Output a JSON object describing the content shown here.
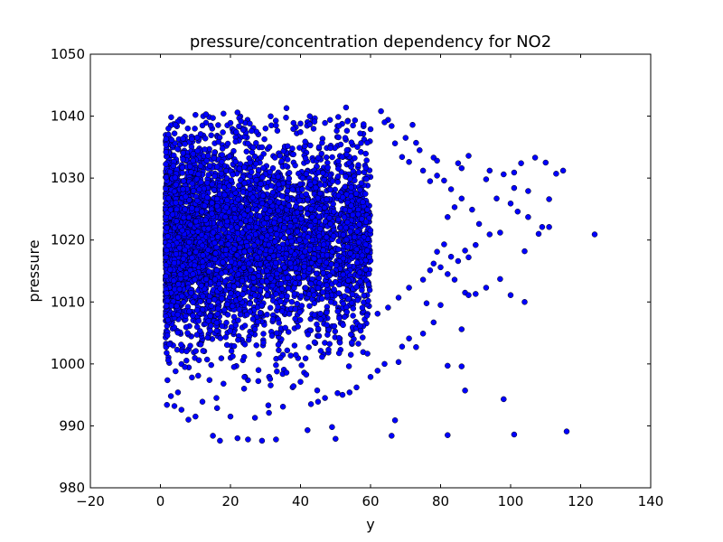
{
  "chart_data": {
    "type": "scatter",
    "title": "pressure/concentration dependency for NO2",
    "xlabel": "y",
    "ylabel": "pressure",
    "xlim": [
      -20,
      140
    ],
    "ylim": [
      980,
      1050
    ],
    "xticks": [
      -20,
      0,
      20,
      40,
      60,
      80,
      100,
      120,
      140
    ],
    "yticks": [
      980,
      990,
      1000,
      1010,
      1020,
      1030,
      1040,
      1050
    ],
    "grid": false,
    "legend": "none",
    "marker_color": "#0000ff",
    "edge_color": "#000000",
    "dense_region": {
      "x_range": [
        1.5,
        60
      ],
      "y_range": [
        1000,
        1035
      ],
      "approx_points": 4500
    },
    "points": [
      [
        53,
        1041.4
      ],
      [
        36,
        1041.3
      ],
      [
        63,
        1040.8
      ],
      [
        18,
        1040.4
      ],
      [
        10,
        1040.2
      ],
      [
        13,
        1040.3
      ],
      [
        22,
        1040.6
      ],
      [
        65,
        1039.4
      ],
      [
        47,
        1038.9
      ],
      [
        55,
        1038.5
      ],
      [
        72,
        1038.6
      ],
      [
        70,
        1036.5
      ],
      [
        73,
        1035.7
      ],
      [
        74,
        1034.5
      ],
      [
        78,
        1033.3
      ],
      [
        79,
        1032.8
      ],
      [
        85,
        1032.4
      ],
      [
        88,
        1033.6
      ],
      [
        86,
        1031.6
      ],
      [
        94,
        1031.2
      ],
      [
        98,
        1030.6
      ],
      [
        101,
        1030.9
      ],
      [
        103,
        1032.4
      ],
      [
        107,
        1033.3
      ],
      [
        110,
        1032.5
      ],
      [
        113,
        1030.7
      ],
      [
        115,
        1031.2
      ],
      [
        93,
        1029.8
      ],
      [
        101,
        1028.4
      ],
      [
        105,
        1027.9
      ],
      [
        111,
        1026.6
      ],
      [
        96,
        1026.7
      ],
      [
        100,
        1025.9
      ],
      [
        102,
        1024.6
      ],
      [
        105,
        1023.7
      ],
      [
        109,
        1022.1
      ],
      [
        111,
        1022.1
      ],
      [
        108,
        1021.0
      ],
      [
        97,
        1021.2
      ],
      [
        94,
        1020.9
      ],
      [
        91,
        1022.6
      ],
      [
        89,
        1024.9
      ],
      [
        90,
        1019.2
      ],
      [
        87,
        1018.3
      ],
      [
        88,
        1017.2
      ],
      [
        85,
        1016.6
      ],
      [
        83,
        1017.3
      ],
      [
        81,
        1019.3
      ],
      [
        79,
        1018.1
      ],
      [
        78,
        1016.2
      ],
      [
        82,
        1014.5
      ],
      [
        84,
        1013.6
      ],
      [
        87,
        1011.5
      ],
      [
        88,
        1011.1
      ],
      [
        90,
        1011.3
      ],
      [
        93,
        1012.3
      ],
      [
        97,
        1013.7
      ],
      [
        100,
        1011.1
      ],
      [
        104,
        1010.0
      ],
      [
        104,
        1018.2
      ],
      [
        124,
        1020.9
      ],
      [
        76,
        1009.8
      ],
      [
        80,
        1009.5
      ],
      [
        86,
        1005.6
      ],
      [
        78,
        1006.7
      ],
      [
        75,
        1004.9
      ],
      [
        71,
        1004.1
      ],
      [
        69,
        1002.8
      ],
      [
        73,
        1002.7
      ],
      [
        68,
        1000.3
      ],
      [
        64,
        1000.0
      ],
      [
        62,
        998.9
      ],
      [
        60,
        997.9
      ],
      [
        56,
        996.2
      ],
      [
        54,
        995.4
      ],
      [
        52,
        995.0
      ],
      [
        47,
        994.5
      ],
      [
        45,
        993.9
      ],
      [
        43,
        993.5
      ],
      [
        82,
        999.7
      ],
      [
        86,
        999.6
      ],
      [
        87,
        995.7
      ],
      [
        98,
        994.3
      ],
      [
        116,
        989.1
      ],
      [
        101,
        988.6
      ],
      [
        82,
        988.5
      ],
      [
        66,
        988.4
      ],
      [
        67,
        990.9
      ],
      [
        49,
        989.8
      ],
      [
        50,
        987.9
      ],
      [
        42,
        989.3
      ],
      [
        33,
        987.8
      ],
      [
        29,
        987.6
      ],
      [
        25,
        987.8
      ],
      [
        22,
        988.0
      ],
      [
        17,
        987.6
      ],
      [
        15,
        988.4
      ],
      [
        8,
        991.0
      ],
      [
        10,
        991.5
      ],
      [
        5,
        995.4
      ],
      [
        3,
        994.8
      ],
      [
        4,
        993.2
      ],
      [
        6,
        992.6
      ],
      [
        12,
        993.9
      ],
      [
        16,
        994.5
      ],
      [
        20,
        991.5
      ],
      [
        27,
        991.3
      ],
      [
        31,
        992.1
      ],
      [
        35,
        993.1
      ],
      [
        38,
        996.4
      ],
      [
        40,
        997.1
      ],
      [
        36,
        998.6
      ],
      [
        33,
        999.8
      ],
      [
        28,
        999.0
      ],
      [
        24,
        997.9
      ],
      [
        21,
        999.5
      ],
      [
        18,
        996.8
      ],
      [
        14,
        997.4
      ],
      [
        9,
        997.8
      ],
      [
        7,
        999.5
      ],
      [
        11,
        1000.6
      ],
      [
        27,
        1005.6
      ],
      [
        44,
        1003.5
      ],
      [
        48,
        1002.3
      ],
      [
        51,
        1004.2
      ],
      [
        57,
        1006.1
      ],
      [
        59,
        1007.8
      ],
      [
        62,
        1008.1
      ],
      [
        65,
        1009.1
      ],
      [
        68,
        1010.7
      ],
      [
        71,
        1012.3
      ],
      [
        75,
        1013.6
      ],
      [
        77,
        1015.1
      ],
      [
        80,
        1015.6
      ],
      [
        82,
        1023.7
      ],
      [
        84,
        1025.3
      ],
      [
        86,
        1026.7
      ],
      [
        83,
        1028.2
      ],
      [
        81,
        1029.6
      ],
      [
        79,
        1030.4
      ],
      [
        77,
        1029.5
      ],
      [
        75,
        1031.2
      ],
      [
        71,
        1032.6
      ],
      [
        69,
        1033.4
      ],
      [
        67,
        1035.6
      ],
      [
        66,
        1038.4
      ],
      [
        64,
        1039.0
      ],
      [
        60,
        1037.9
      ],
      [
        58,
        1038.7
      ],
      [
        51,
        1038.4
      ],
      [
        44,
        1039.1
      ],
      [
        40,
        1038.8
      ],
      [
        38,
        1038.9
      ],
      [
        33,
        1038.5
      ],
      [
        30,
        1038.0
      ],
      [
        26,
        1037.6
      ],
      [
        23,
        1039.2
      ],
      [
        20,
        1038.9
      ],
      [
        15,
        1039.7
      ],
      [
        12,
        1038.5
      ],
      [
        9,
        1036.3
      ],
      [
        7,
        1035.5
      ]
    ]
  }
}
